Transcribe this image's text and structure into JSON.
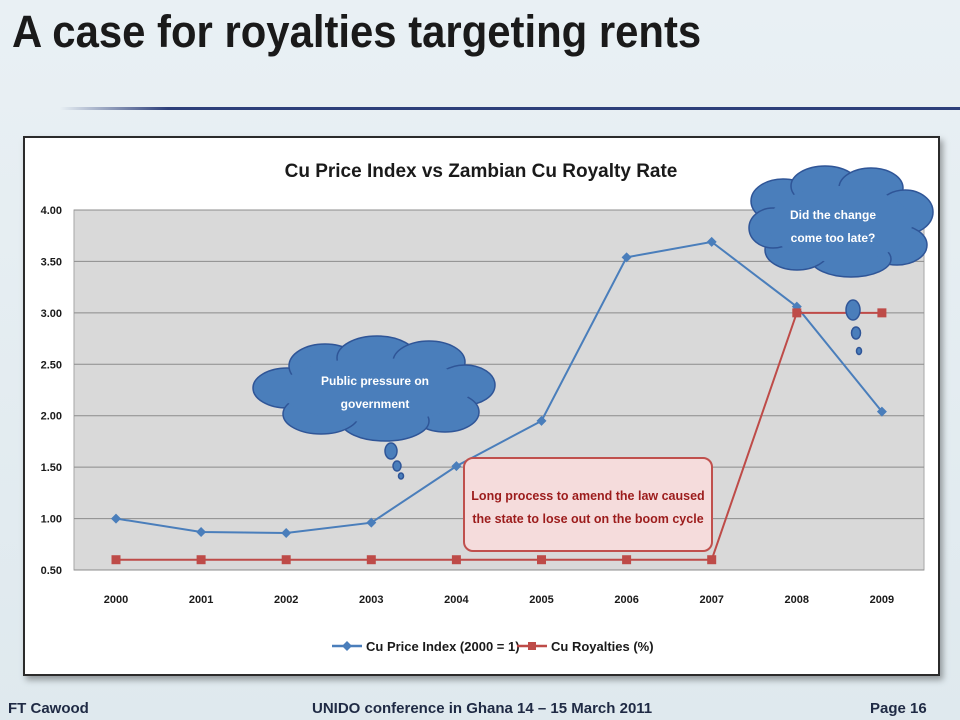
{
  "slide": {
    "title": "A case for royalties targeting rents"
  },
  "footer": {
    "author": "FT Cawood",
    "event": "UNIDO conference in Ghana 14 – 15 March 2011",
    "page": "Page 16"
  },
  "colors": {
    "series_price": "#4a7ebb",
    "series_royalty": "#be4b48",
    "plot_bg": "#d9d9d9",
    "cloud_fill": "#4a7ebb",
    "callout_fill": "#f5dcdc",
    "callout_border": "#c0504d"
  },
  "annotations": {
    "cloud_left": [
      "Public pressure on",
      "government"
    ],
    "cloud_right": [
      "Did the change",
      "come too late?"
    ],
    "callout": [
      "Long process to amend the law caused",
      "the state to lose out on the boom cycle"
    ]
  },
  "chart_data": {
    "type": "line",
    "title": "Cu Price Index  vs Zambian Cu Royalty Rate",
    "categories": [
      "2000",
      "2001",
      "2002",
      "2003",
      "2004",
      "2005",
      "2006",
      "2007",
      "2008",
      "2009"
    ],
    "y_ticks": [
      "4.00",
      "3.50",
      "3.00",
      "2.50",
      "2.00",
      "1.50",
      "1.00",
      "0.50"
    ],
    "ylim": [
      0.5,
      4.0
    ],
    "grid": true,
    "legend_position": "bottom",
    "series": [
      {
        "name": "Cu Price Index (2000 = 1)",
        "marker": "diamond",
        "values": [
          1.0,
          0.87,
          0.86,
          0.96,
          1.51,
          1.95,
          3.54,
          3.69,
          3.06,
          2.04
        ]
      },
      {
        "name": "Cu Royalties (%)",
        "marker": "square",
        "values": [
          0.6,
          0.6,
          0.6,
          0.6,
          0.6,
          0.6,
          0.6,
          0.6,
          3.0,
          3.0
        ]
      }
    ]
  }
}
